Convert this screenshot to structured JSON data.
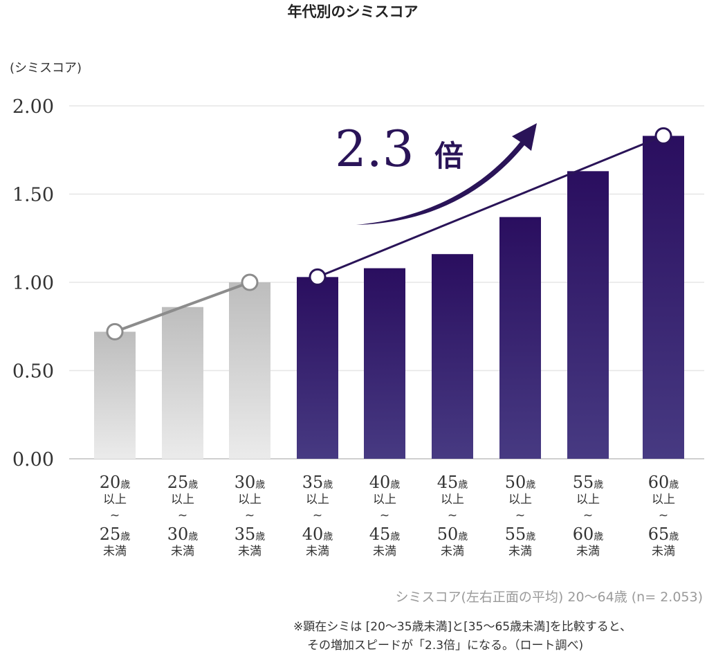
{
  "chart_data": {
    "type": "bar",
    "title": "年代別のシミスコア",
    "ylabel": "(シミスコア)",
    "ylim": [
      0,
      2.0
    ],
    "yticks": [
      "0.00",
      "0.50",
      "1.00",
      "1.50",
      "2.00"
    ],
    "grid": true,
    "categories": [
      [
        "20",
        "以上",
        "~",
        "25",
        "未満"
      ],
      [
        "25",
        "以上",
        "~",
        "30",
        "未満"
      ],
      [
        "30",
        "以上",
        "~",
        "35",
        "未満"
      ],
      [
        "35",
        "以上",
        "~",
        "40",
        "未満"
      ],
      [
        "40",
        "以上",
        "~",
        "45",
        "未満"
      ],
      [
        "45",
        "以上",
        "~",
        "50",
        "未満"
      ],
      [
        "50",
        "以上",
        "~",
        "55",
        "未満"
      ],
      [
        "55",
        "以上",
        "~",
        "60",
        "未満"
      ],
      [
        "60",
        "以上",
        "~",
        "65",
        "未満"
      ]
    ],
    "age_unit": "歳",
    "values": [
      0.72,
      0.86,
      1.0,
      1.03,
      1.08,
      1.16,
      1.37,
      1.63,
      1.83
    ],
    "groups": [
      "gray",
      "gray",
      "gray",
      "purple",
      "purple",
      "purple",
      "purple",
      "purple",
      "purple"
    ],
    "annotation": {
      "number": "2.3",
      "suffix": "倍"
    },
    "colors": {
      "gray_top": "#bdbdbd",
      "gray_bottom": "#ebebeb",
      "purple_top": "#2a0e5f",
      "purple_bottom": "#473a82",
      "trend_gray": "#8c8c8c",
      "trend_purple": "#2a1458"
    }
  },
  "notes": {
    "source": "シミスコア(左右正面の平均) 20〜64歳 (n= 2.053)",
    "foot1": "※顕在シミは [20〜35歳未満]と[35〜65歳未満]を比較すると、",
    "foot2": "その増加スピードが「2.3倍」になる。（ロート調べ)"
  }
}
